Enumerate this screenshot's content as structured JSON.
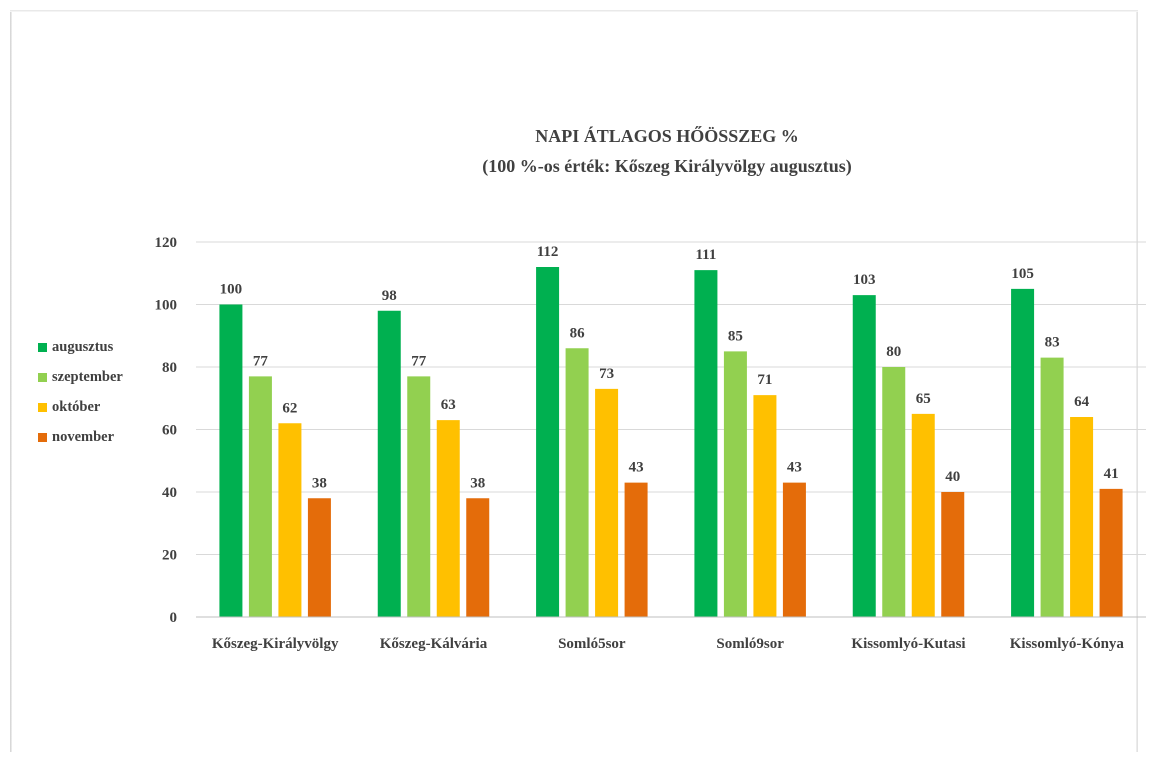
{
  "chart_data": {
    "type": "bar",
    "title": "NAPI ÁTLAGOS HŐÖSSZEG %",
    "subtitle": "(100 %-os érték: Kőszeg Királyvölgy augusztus)",
    "categories": [
      "Kőszeg-Királyvölgy",
      "Kőszeg-Kálvária",
      "Somló5sor",
      "Somló9sor",
      "Kissomlyó-Kutasi",
      "Kissomlyó-Kónya"
    ],
    "series": [
      {
        "name": "augusztus",
        "color": "#00b050",
        "values": [
          100,
          98,
          112,
          111,
          103,
          105
        ]
      },
      {
        "name": "szeptember",
        "color": "#92d050",
        "values": [
          77,
          77,
          86,
          85,
          80,
          83
        ]
      },
      {
        "name": "október",
        "color": "#ffc000",
        "values": [
          62,
          63,
          73,
          71,
          65,
          64
        ]
      },
      {
        "name": "november",
        "color": "#e46c0a",
        "values": [
          38,
          38,
          43,
          43,
          40,
          41
        ]
      }
    ],
    "yticks": [
      "0",
      "20",
      "40",
      "60",
      "80",
      "100",
      "120"
    ],
    "ylim": [
      0,
      120
    ],
    "grid": true,
    "legend_position": "left"
  }
}
